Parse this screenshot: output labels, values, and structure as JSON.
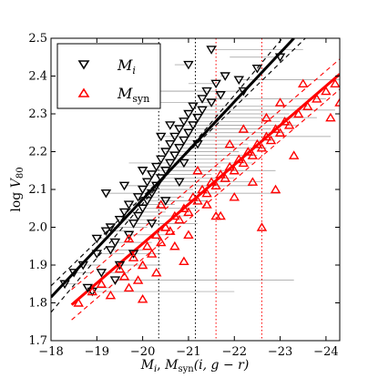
{
  "chart_data": {
    "type": "scatter",
    "title": "",
    "xlabel": "M_i, M_syn(i, g − r)",
    "xlabel_parts": {
      "a": "M",
      "a_sub": "i",
      "sep": ", ",
      "b": "M",
      "b_sub": "syn",
      "b_args": "(i, g − r)"
    },
    "ylabel": "log V80",
    "ylabel_parts": {
      "base": "log ",
      "var": "V",
      "sub": "80"
    },
    "xlim": [
      -18,
      -24.3
    ],
    "ylim": [
      1.7,
      2.5
    ],
    "x_inverted": true,
    "grid": false,
    "legend_position": "top-left",
    "x_ticks": [
      -18,
      -19,
      -20,
      -21,
      -22,
      -23,
      -24
    ],
    "x_tick_labels": [
      "−18",
      "−19",
      "−20",
      "−21",
      "−22",
      "−23",
      "−24"
    ],
    "y_ticks": [
      1.7,
      1.8,
      1.9,
      2.0,
      2.1,
      2.2,
      2.3,
      2.4,
      2.5
    ],
    "y_tick_labels": [
      "1.7",
      "1.8",
      "1.9",
      "2.0",
      "2.1",
      "2.2",
      "2.3",
      "2.4",
      "2.5"
    ],
    "series": [
      {
        "name": "M_i",
        "legend_label": {
          "base": "M",
          "sub": "i"
        },
        "marker": "triangle-down",
        "color": "#000000",
        "points": [
          [
            -18.3,
            1.85
          ],
          [
            -18.5,
            1.88
          ],
          [
            -18.7,
            1.9
          ],
          [
            -18.8,
            1.84
          ],
          [
            -19.0,
            1.97
          ],
          [
            -19.0,
            1.93
          ],
          [
            -19.1,
            1.88
          ],
          [
            -19.2,
            1.99
          ],
          [
            -19.3,
            1.94
          ],
          [
            -19.3,
            2.0
          ],
          [
            -19.4,
            1.96
          ],
          [
            -19.5,
            2.02
          ],
          [
            -19.5,
            1.9
          ],
          [
            -19.6,
            2.04
          ],
          [
            -19.7,
            1.98
          ],
          [
            -19.7,
            2.06
          ],
          [
            -19.8,
            2.01
          ],
          [
            -19.9,
            2.08
          ],
          [
            -19.9,
            2.03
          ],
          [
            -20.0,
            2.1
          ],
          [
            -20.0,
            2.05
          ],
          [
            -20.1,
            2.12
          ],
          [
            -20.1,
            2.07
          ],
          [
            -20.2,
            2.14
          ],
          [
            -20.2,
            2.09
          ],
          [
            -20.3,
            2.16
          ],
          [
            -20.3,
            2.11
          ],
          [
            -20.4,
            2.18
          ],
          [
            -20.4,
            2.13
          ],
          [
            -20.5,
            2.2
          ],
          [
            -20.5,
            2.15
          ],
          [
            -20.6,
            2.22
          ],
          [
            -20.6,
            2.17
          ],
          [
            -20.7,
            2.19
          ],
          [
            -20.7,
            2.24
          ],
          [
            -20.8,
            2.21
          ],
          [
            -20.8,
            2.26
          ],
          [
            -20.9,
            2.23
          ],
          [
            -20.9,
            2.28
          ],
          [
            -21.0,
            2.25
          ],
          [
            -21.0,
            2.3
          ],
          [
            -21.1,
            2.27
          ],
          [
            -21.1,
            2.32
          ],
          [
            -21.2,
            2.29
          ],
          [
            -21.3,
            2.34
          ],
          [
            -21.3,
            2.31
          ],
          [
            -21.4,
            2.36
          ],
          [
            -21.5,
            2.33
          ],
          [
            -21.6,
            2.38
          ],
          [
            -21.7,
            2.35
          ],
          [
            -18.9,
            1.83
          ],
          [
            -19.6,
            2.11
          ],
          [
            -20.0,
            2.15
          ],
          [
            -20.5,
            2.07
          ],
          [
            -21.0,
            2.43
          ],
          [
            -21.5,
            2.47
          ],
          [
            -22.1,
            2.39
          ],
          [
            -22.5,
            2.42
          ],
          [
            -23.0,
            2.45
          ],
          [
            -20.2,
            2.01
          ],
          [
            -19.8,
            1.93
          ],
          [
            -20.9,
            2.17
          ],
          [
            -21.2,
            2.22
          ],
          [
            -20.6,
            2.27
          ],
          [
            -19.4,
            1.86
          ],
          [
            -20.4,
            2.24
          ],
          [
            -21.8,
            2.4
          ],
          [
            -22.2,
            2.36
          ],
          [
            -20.8,
            2.12
          ],
          [
            -19.2,
            2.09
          ]
        ]
      },
      {
        "name": "M_syn",
        "legend_label": {
          "base": "M",
          "sub": "syn"
        },
        "marker": "triangle-up",
        "color": "#ff0000",
        "points": [
          [
            -18.6,
            1.8
          ],
          [
            -18.9,
            1.83
          ],
          [
            -19.1,
            1.85
          ],
          [
            -19.3,
            1.82
          ],
          [
            -19.5,
            1.89
          ],
          [
            -19.6,
            1.87
          ],
          [
            -19.7,
            1.84
          ],
          [
            -19.8,
            1.92
          ],
          [
            -20.0,
            1.9
          ],
          [
            -20.1,
            1.95
          ],
          [
            -20.2,
            1.93
          ],
          [
            -20.3,
            1.98
          ],
          [
            -20.4,
            1.96
          ],
          [
            -20.5,
            2.0
          ],
          [
            -20.6,
            1.99
          ],
          [
            -20.7,
            2.03
          ],
          [
            -20.8,
            2.02
          ],
          [
            -20.9,
            2.05
          ],
          [
            -21.0,
            2.04
          ],
          [
            -21.1,
            2.08
          ],
          [
            -21.2,
            2.07
          ],
          [
            -21.3,
            2.1
          ],
          [
            -21.4,
            2.09
          ],
          [
            -21.5,
            2.12
          ],
          [
            -21.6,
            2.11
          ],
          [
            -21.7,
            2.14
          ],
          [
            -21.8,
            2.13
          ],
          [
            -21.9,
            2.16
          ],
          [
            -22.0,
            2.15
          ],
          [
            -22.1,
            2.18
          ],
          [
            -22.2,
            2.17
          ],
          [
            -22.3,
            2.2
          ],
          [
            -22.4,
            2.19
          ],
          [
            -22.5,
            2.22
          ],
          [
            -22.6,
            2.21
          ],
          [
            -22.7,
            2.24
          ],
          [
            -22.8,
            2.23
          ],
          [
            -22.9,
            2.26
          ],
          [
            -23.0,
            2.25
          ],
          [
            -23.1,
            2.28
          ],
          [
            -23.2,
            2.27
          ],
          [
            -23.4,
            2.3
          ],
          [
            -23.6,
            2.32
          ],
          [
            -23.8,
            2.34
          ],
          [
            -24.0,
            2.36
          ],
          [
            -24.2,
            2.38
          ],
          [
            -19.9,
            1.86
          ],
          [
            -20.0,
            1.81
          ],
          [
            -21.0,
            1.98
          ],
          [
            -21.6,
            2.03
          ],
          [
            -22.0,
            2.08
          ],
          [
            -22.4,
            2.12
          ],
          [
            -22.9,
            2.1
          ],
          [
            -21.4,
            2.06
          ],
          [
            -20.7,
            1.95
          ],
          [
            -23.5,
            2.38
          ],
          [
            -24.3,
            2.33
          ],
          [
            -22.7,
            2.29
          ],
          [
            -21.9,
            2.22
          ],
          [
            -21.2,
            2.15
          ],
          [
            -20.4,
            2.06
          ],
          [
            -19.7,
            1.97
          ],
          [
            -20.9,
            1.91
          ],
          [
            -22.2,
            2.26
          ],
          [
            -23.3,
            2.19
          ],
          [
            -24.1,
            2.29
          ],
          [
            -21.7,
            2.03
          ],
          [
            -20.3,
            1.88
          ],
          [
            -22.6,
            2.0
          ],
          [
            -23.0,
            2.33
          ]
        ]
      }
    ],
    "fit_lines": [
      {
        "name": "M_i fit",
        "color": "#000000",
        "style": "solid",
        "points": [
          [
            -18.0,
            1.815
          ],
          [
            -23.3,
            2.5
          ]
        ]
      },
      {
        "name": "M_i +scatter",
        "color": "#000000",
        "style": "dashed",
        "points": [
          [
            -18.0,
            1.845
          ],
          [
            -23.55,
            2.5
          ]
        ]
      },
      {
        "name": "M_i −scatter",
        "color": "#000000",
        "style": "dashed",
        "points": [
          [
            -18.0,
            1.775
          ],
          [
            -23.05,
            2.5
          ]
        ]
      },
      {
        "name": "M_syn fit",
        "color": "#ff0000",
        "style": "solid",
        "points": [
          [
            -18.45,
            1.795
          ],
          [
            -24.3,
            2.405
          ]
        ]
      },
      {
        "name": "M_syn +scatter",
        "color": "#ff0000",
        "style": "dashed",
        "points": [
          [
            -18.45,
            1.835
          ],
          [
            -24.3,
            2.445
          ]
        ]
      },
      {
        "name": "M_syn −scatter",
        "color": "#ff0000",
        "style": "dashed",
        "points": [
          [
            -18.45,
            1.755
          ],
          [
            -24.3,
            2.365
          ]
        ]
      }
    ],
    "vertical_lines": [
      {
        "x": -20.35,
        "color": "#000000",
        "style": "dotted"
      },
      {
        "x": -21.15,
        "color": "#000000",
        "style": "dotted"
      },
      {
        "x": -21.6,
        "color": "#ff0000",
        "style": "dotted"
      },
      {
        "x": -22.6,
        "color": "#ff0000",
        "style": "dotted"
      }
    ]
  }
}
